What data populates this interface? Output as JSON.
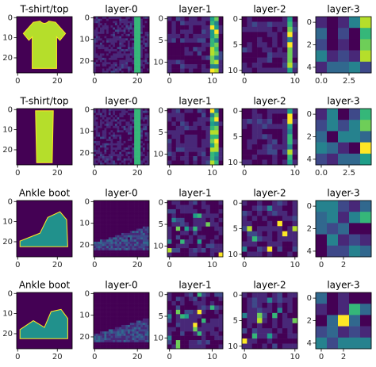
{
  "chart_data": [
    {
      "type": "image",
      "title": "T-shirt/top",
      "xlim": [
        -0.5,
        27.5
      ],
      "ylim": [
        27.5,
        -0.5
      ],
      "xticks": [
        0,
        20
      ],
      "yticks": [
        0,
        10,
        20
      ]
    },
    {
      "type": "image",
      "title": "layer-0",
      "xlim": [
        -0.5,
        25.5
      ],
      "ylim": [
        25.5,
        -0.5
      ],
      "xticks": [
        0,
        20
      ],
      "yticks": [
        0,
        10,
        20
      ]
    },
    {
      "type": "image",
      "title": "layer-1",
      "xlim": [
        -0.5,
        12.5
      ],
      "ylim": [
        12.5,
        -0.5
      ],
      "xticks": [
        0,
        10
      ],
      "yticks": [
        0,
        5,
        10
      ]
    },
    {
      "type": "image",
      "title": "layer-2",
      "xlim": [
        -0.5,
        10.5
      ],
      "ylim": [
        10.5,
        -0.5
      ],
      "xticks": [
        0,
        10
      ],
      "yticks": [
        0,
        5,
        10
      ]
    },
    {
      "type": "image",
      "title": "layer-3",
      "xlim": [
        -0.5,
        4.5
      ],
      "ylim": [
        4.5,
        -0.5
      ],
      "xticks": [
        {
          "value": 0,
          "label": "0.0"
        },
        {
          "value": 2.5,
          "label": "2.5"
        }
      ],
      "yticks": [
        0,
        2,
        4
      ]
    },
    {
      "type": "image",
      "title": "T-shirt/top",
      "xlim": [
        -0.5,
        27.5
      ],
      "ylim": [
        27.5,
        -0.5
      ],
      "xticks": [
        0,
        20
      ],
      "yticks": [
        0,
        10,
        20
      ]
    },
    {
      "type": "image",
      "title": "layer-0",
      "xlim": [
        -0.5,
        25.5
      ],
      "ylim": [
        25.5,
        -0.5
      ],
      "xticks": [
        0,
        20
      ],
      "yticks": [
        0,
        10,
        20
      ]
    },
    {
      "type": "image",
      "title": "layer-1",
      "xlim": [
        -0.5,
        12.5
      ],
      "ylim": [
        12.5,
        -0.5
      ],
      "xticks": [
        0,
        10
      ],
      "yticks": [
        0,
        5,
        10
      ]
    },
    {
      "type": "image",
      "title": "layer-2",
      "xlim": [
        -0.5,
        10.5
      ],
      "ylim": [
        10.5,
        -0.5
      ],
      "xticks": [
        0,
        10
      ],
      "yticks": [
        0,
        5,
        10
      ]
    },
    {
      "type": "image",
      "title": "layer-3",
      "xlim": [
        -0.5,
        4.5
      ],
      "ylim": [
        4.5,
        -0.5
      ],
      "xticks": [
        {
          "value": 0,
          "label": "0.0"
        },
        {
          "value": 2.5,
          "label": "2.5"
        }
      ],
      "yticks": [
        0,
        2,
        4
      ]
    },
    {
      "type": "image",
      "title": "Ankle boot",
      "xlim": [
        -0.5,
        27.5
      ],
      "ylim": [
        27.5,
        -0.5
      ],
      "xticks": [
        0,
        20
      ],
      "yticks": [
        0,
        10,
        20
      ]
    },
    {
      "type": "image",
      "title": "layer-0",
      "xlim": [
        -0.5,
        25.5
      ],
      "ylim": [
        25.5,
        -0.5
      ],
      "xticks": [
        0,
        20
      ],
      "yticks": [
        0,
        10,
        20
      ]
    },
    {
      "type": "image",
      "title": "layer-1",
      "xlim": [
        -0.5,
        12.5
      ],
      "ylim": [
        12.5,
        -0.5
      ],
      "xticks": [
        0,
        10
      ],
      "yticks": [
        0,
        5,
        10
      ]
    },
    {
      "type": "image",
      "title": "layer-2",
      "xlim": [
        -0.5,
        10.5
      ],
      "ylim": [
        10.5,
        -0.5
      ],
      "xticks": [
        0,
        10
      ],
      "yticks": [
        0,
        5,
        10
      ]
    },
    {
      "type": "image",
      "title": "layer-3",
      "xlim": [
        -0.5,
        4.5
      ],
      "ylim": [
        4.5,
        -0.5
      ],
      "xticks": [
        0,
        2
      ],
      "yticks": [
        0,
        2,
        4
      ]
    },
    {
      "type": "image",
      "title": "Ankle boot",
      "xlim": [
        -0.5,
        27.5
      ],
      "ylim": [
        27.5,
        -0.5
      ],
      "xticks": [
        0,
        20
      ],
      "yticks": [
        0,
        10,
        20
      ]
    },
    {
      "type": "image",
      "title": "layer-0",
      "xlim": [
        -0.5,
        25.5
      ],
      "ylim": [
        25.5,
        -0.5
      ],
      "xticks": [
        0,
        20
      ],
      "yticks": [
        0,
        10,
        20
      ]
    },
    {
      "type": "image",
      "title": "layer-1",
      "xlim": [
        -0.5,
        12.5
      ],
      "ylim": [
        12.5,
        -0.5
      ],
      "xticks": [
        0,
        10
      ],
      "yticks": [
        0,
        5,
        10
      ]
    },
    {
      "type": "image",
      "title": "layer-2",
      "xlim": [
        -0.5,
        10.5
      ],
      "ylim": [
        10.5,
        -0.5
      ],
      "xticks": [
        0,
        10
      ],
      "yticks": [
        0,
        5,
        10
      ]
    },
    {
      "type": "image",
      "title": "layer-3",
      "xlim": [
        -0.5,
        4.5
      ],
      "ylim": [
        4.5,
        -0.5
      ],
      "xticks": [
        0,
        2
      ],
      "yticks": [
        0,
        2,
        4
      ]
    }
  ]
}
